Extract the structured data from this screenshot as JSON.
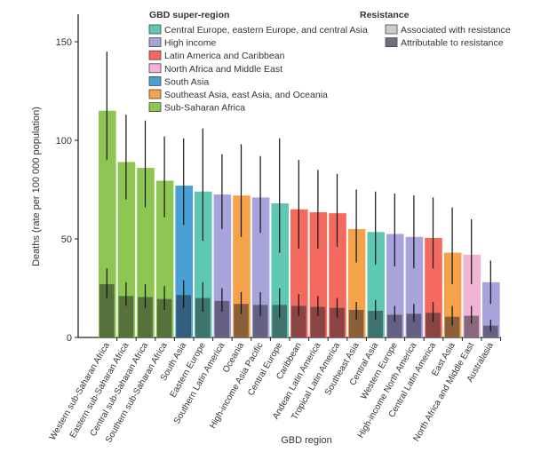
{
  "chart_data": {
    "type": "bar",
    "xlabel": "GBD region",
    "ylabel": "Deaths (rate per 100 000 population)",
    "ylim": [
      0,
      165
    ],
    "yticks": [
      0,
      50,
      100,
      150
    ],
    "grid": false,
    "legend_placement": "top",
    "legend_super_title": "GBD super-region",
    "legend_resistance_title": "Resistance",
    "super_regions": [
      {
        "name": "Central Europe, eastern Europe, and central Asia",
        "color": "#5ec8b4"
      },
      {
        "name": "High income",
        "color": "#a9a3db"
      },
      {
        "name": "Latin America and Caribbean",
        "color": "#f46a5e"
      },
      {
        "name": "North Africa and Middle East",
        "color": "#f0b4d4"
      },
      {
        "name": "South Asia",
        "color": "#4a9fd4"
      },
      {
        "name": "Southeast Asia, east Asia, and Oceania",
        "color": "#f5a34b"
      },
      {
        "name": "Sub-Saharan Africa",
        "color": "#8dc653"
      }
    ],
    "resistance": [
      {
        "name": "Associated with resistance",
        "color": "#cccccc"
      },
      {
        "name": "Attributable to resistance",
        "color": "#6e6e80"
      }
    ],
    "categories": [
      "Western sub-Saharan Africa",
      "Eastern sub-Saharan Africa",
      "Central sub-Saharan Africa",
      "Southern sub-Saharan Africa",
      "South Asia",
      "Eastern Europe",
      "Southern Latin America",
      "Oceania",
      "High-income Asia Pacific",
      "Central Europe",
      "Caribbean",
      "Andean Latin America",
      "Tropical Latin America",
      "Southeast Asia",
      "Central Asia",
      "Western Europe",
      "High-income North America",
      "Central Latin America",
      "East Asia",
      "North Africa and Middle East",
      "Australasia"
    ],
    "super_region_index": [
      6,
      6,
      6,
      6,
      4,
      0,
      1,
      5,
      1,
      0,
      2,
      2,
      2,
      5,
      0,
      1,
      1,
      2,
      5,
      3,
      1
    ],
    "series": [
      {
        "name": "Associated with resistance",
        "values": [
          115,
          89,
          86,
          79.5,
          77,
          74,
          72.5,
          72,
          71,
          68,
          65,
          63.5,
          63,
          55,
          53.5,
          52.5,
          51,
          50.5,
          43,
          42,
          28
        ],
        "lower": [
          90,
          70,
          66,
          61,
          57,
          49,
          55,
          51,
          53,
          43,
          45,
          45,
          46,
          38,
          37,
          36,
          35,
          35,
          27,
          27,
          17
        ],
        "upper": [
          145,
          113,
          110,
          102,
          101,
          106,
          93,
          98,
          92,
          101,
          90,
          85,
          83,
          75,
          74,
          73,
          72,
          71,
          66,
          60,
          39
        ]
      },
      {
        "name": "Attributable to resistance",
        "values": [
          27,
          21,
          20.5,
          19.5,
          21.5,
          20,
          18.5,
          17,
          16.5,
          16.5,
          16,
          15.5,
          15,
          14,
          13.5,
          11.5,
          12,
          12.5,
          10.5,
          11,
          6
        ],
        "lower": [
          20,
          16,
          15,
          14,
          15,
          13,
          13,
          12,
          11,
          10,
          11,
          11,
          10,
          9,
          9,
          8,
          8,
          8,
          6,
          7,
          3
        ],
        "upper": [
          35,
          28,
          27,
          26,
          29,
          28,
          25,
          23,
          23,
          25,
          22,
          21,
          20,
          18,
          19,
          16,
          17,
          18,
          16,
          16,
          9
        ]
      }
    ]
  }
}
